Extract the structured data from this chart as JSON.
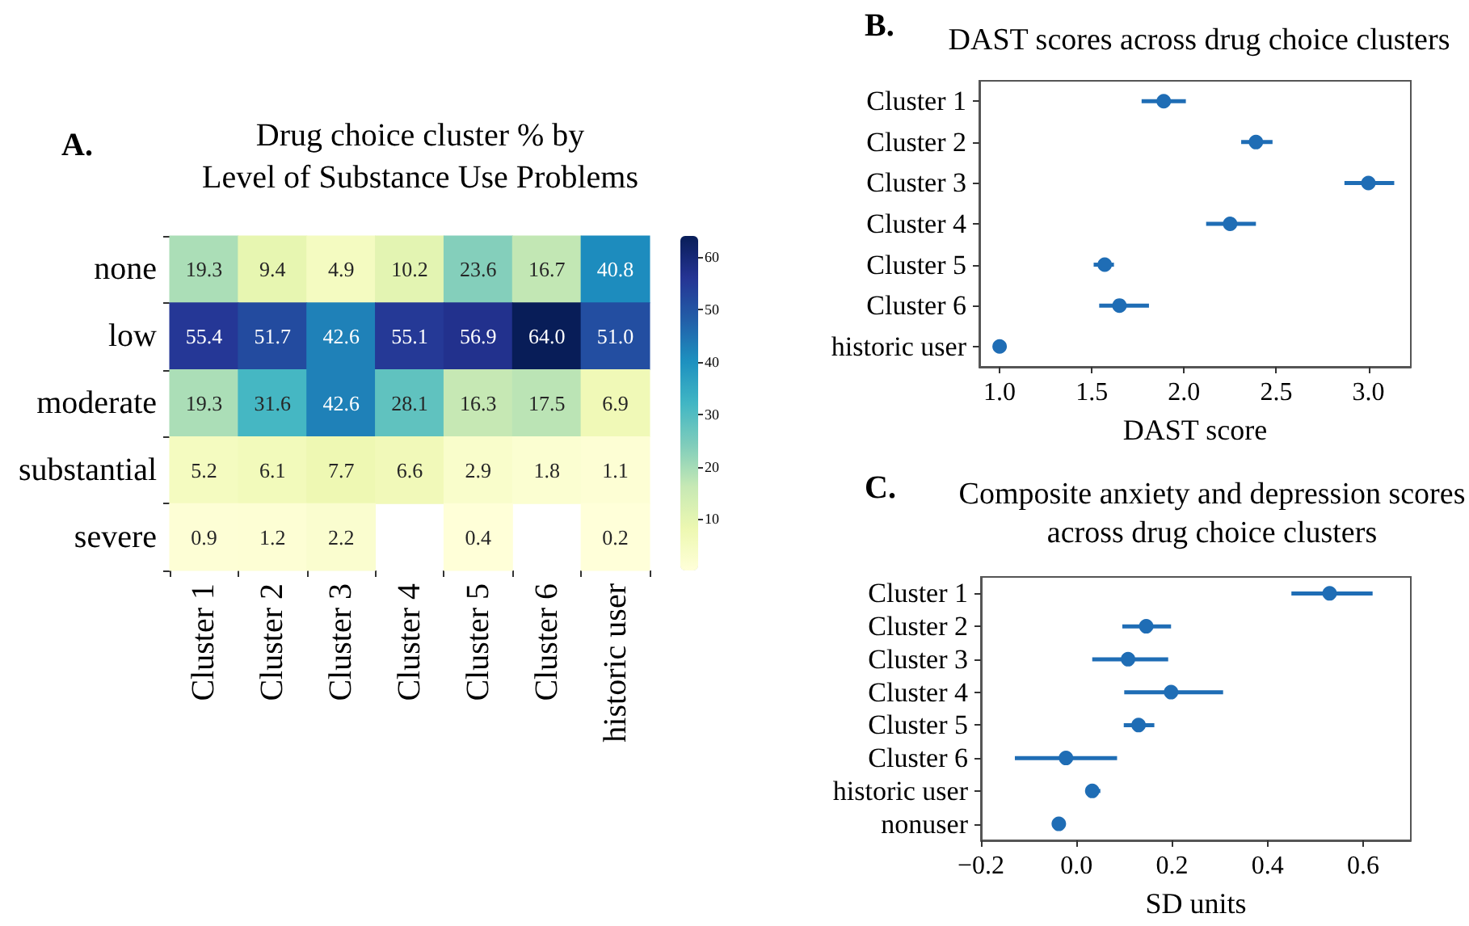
{
  "chart_data": [
    {
      "type": "heatmap",
      "title": "Drug choice cluster % by\nLevel of Substance Use Problems",
      "annotations": [
        "A."
      ],
      "categories": [
        "Cluster 1",
        "Cluster 2",
        "Cluster 3",
        "Cluster 4",
        "Cluster 5",
        "Cluster 6",
        "historic user"
      ],
      "y_categories": [
        "none",
        "low",
        "moderate",
        "substantial",
        "severe"
      ],
      "cells": [
        [
          19.3,
          9.4,
          4.9,
          10.2,
          23.6,
          16.7,
          40.8
        ],
        [
          55.4,
          51.7,
          42.6,
          55.1,
          56.9,
          64.0,
          51.0
        ],
        [
          19.3,
          31.6,
          42.6,
          28.1,
          16.3,
          17.5,
          6.9
        ],
        [
          5.2,
          6.1,
          7.7,
          6.6,
          2.9,
          1.8,
          1.1
        ],
        [
          0.9,
          1.2,
          2.2,
          null,
          0.4,
          null,
          0.2
        ]
      ],
      "cell_labels": [
        [
          "19.3",
          "9.4",
          "4.9",
          "10.2",
          "23.6",
          "16.7",
          "40.8"
        ],
        [
          "55.4",
          "51.7",
          "42.6",
          "55.1",
          "56.9",
          "64.0",
          "51.0"
        ],
        [
          "19.3",
          "31.6",
          "42.6",
          "28.1",
          "16.3",
          "17.5",
          "6.9"
        ],
        [
          "5.2",
          "6.1",
          "7.7",
          "6.6",
          "2.9",
          "1.8",
          "1.1"
        ],
        [
          "0.9",
          "1.2",
          "2.2",
          null,
          "0.4",
          null,
          "0.2"
        ]
      ],
      "clim": [
        0.2,
        64.0
      ],
      "cticks": [
        10,
        20,
        30,
        40,
        50,
        60
      ]
    },
    {
      "type": "scatter",
      "orientation": "horizontal",
      "title": "DAST scores across drug choice clusters",
      "annotations": [
        "B."
      ],
      "xlabel": "DAST score",
      "categories": [
        "Cluster 1",
        "Cluster 2",
        "Cluster 3",
        "Cluster 4",
        "Cluster 5",
        "Cluster 6",
        "historic user"
      ],
      "values": [
        1.89,
        2.39,
        3.0,
        2.25,
        1.57,
        1.65,
        1.0
      ],
      "errors": [
        [
          1.77,
          2.01
        ],
        [
          2.31,
          2.48
        ],
        [
          2.87,
          3.14
        ],
        [
          2.12,
          2.39
        ],
        [
          1.51,
          1.62
        ],
        [
          1.54,
          1.81
        ],
        null
      ],
      "color": "#1f6db5",
      "marker": "circle",
      "xlim": [
        0.89,
        3.23
      ],
      "xticks": [
        {
          "value": 1.0,
          "label": "1.0"
        },
        1.5,
        {
          "value": 2.0,
          "label": "2.0"
        },
        2.5,
        {
          "value": 3.0,
          "label": "3.0"
        }
      ]
    },
    {
      "type": "scatter",
      "orientation": "horizontal",
      "title": "Composite anxiety and depression scores\nacross drug choice clusters",
      "annotations": [
        "C."
      ],
      "xlabel": "SD units",
      "categories": [
        "Cluster 1",
        "Cluster 2",
        "Cluster 3",
        "Cluster 4",
        "Cluster 5",
        "Cluster 6",
        "historic user",
        "nonuser"
      ],
      "values": [
        0.53,
        0.146,
        0.108,
        0.198,
        0.13,
        -0.022,
        0.033,
        -0.037
      ],
      "errors": [
        [
          0.45,
          0.62
        ],
        [
          0.096,
          0.198
        ],
        [
          0.033,
          0.192
        ],
        [
          0.1,
          0.307
        ],
        [
          0.099,
          0.163
        ],
        [
          -0.129,
          0.085
        ],
        [
          0.02,
          0.05
        ],
        null
      ],
      "color": "#1f6db5",
      "marker": "circle",
      "xlim": [
        -0.2,
        0.7
      ],
      "xticks": [
        {
          "value": -0.2,
          "label": "−0.2"
        },
        {
          "value": 0,
          "label": "0.0"
        },
        0.2,
        0.4,
        0.6
      ]
    }
  ]
}
